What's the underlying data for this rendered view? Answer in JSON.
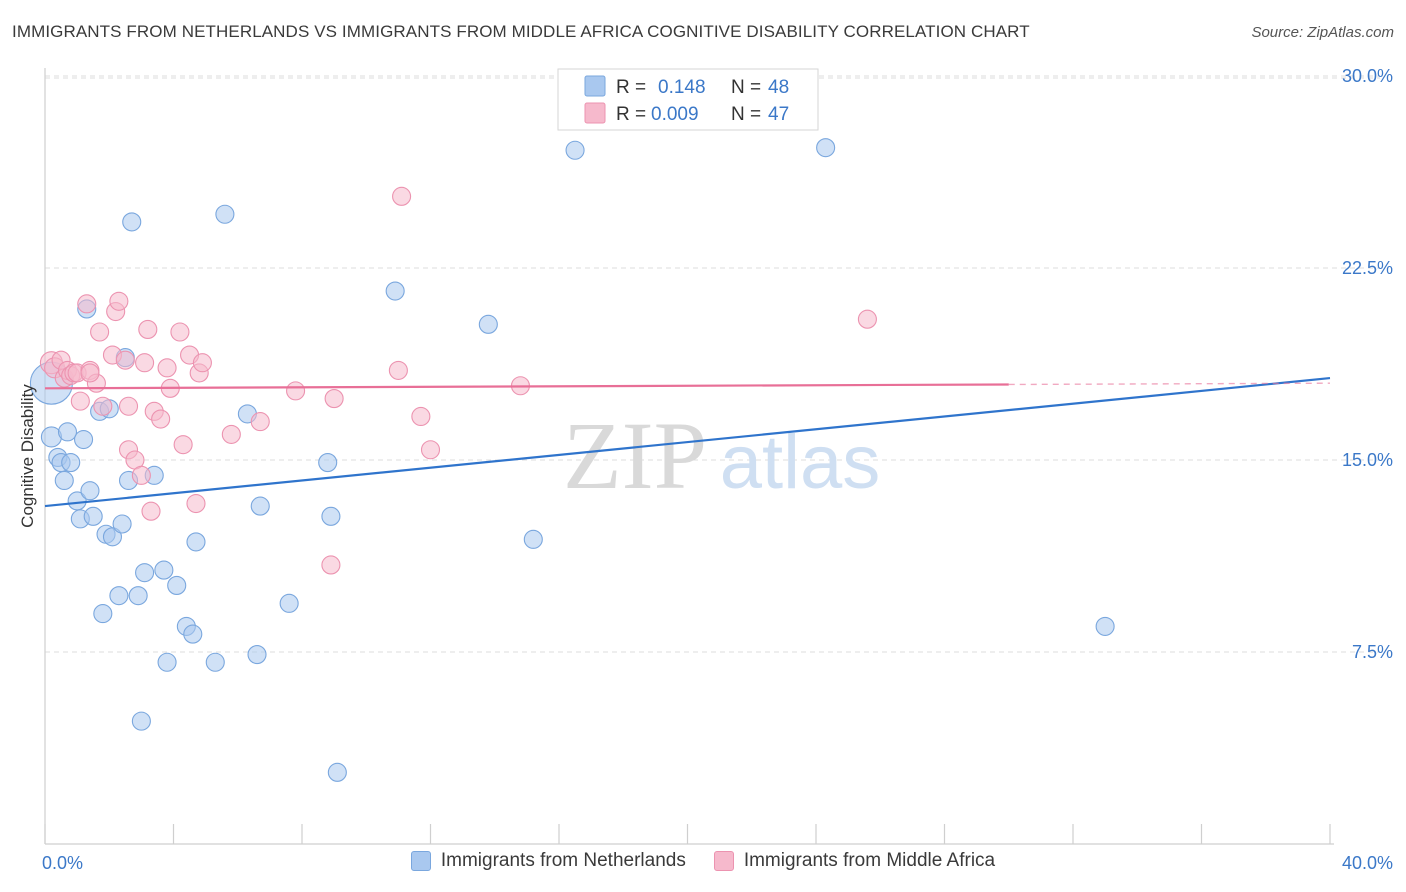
{
  "title": "IMMIGRANTS FROM NETHERLANDS VS IMMIGRANTS FROM MIDDLE AFRICA COGNITIVE DISABILITY CORRELATION CHART",
  "source": "Source: ZipAtlas.com",
  "watermark": {
    "zip": "ZIP",
    "atlas": "atlas"
  },
  "colors": {
    "blue_fill": "#a9c8ef",
    "blue_stroke": "#7aa7de",
    "blue_line": "#2f74cc",
    "pink_fill": "#f6b9cc",
    "pink_stroke": "#ec93b0",
    "pink_line": "#e86f97",
    "axis_text": "#3b78c8",
    "grid": "#dddddd"
  },
  "legend_top": {
    "rows": [
      {
        "r_label": "R =",
        "r_value": "0.148",
        "n_label": "N =",
        "n_value": "48"
      },
      {
        "r_label": "R =",
        "r_value": "0.009",
        "n_label": "N =",
        "n_value": "47"
      }
    ]
  },
  "chart_data": {
    "type": "scatter",
    "ylabel": "Cognitive Disability",
    "xlim": [
      0,
      40
    ],
    "ylim": [
      0,
      31
    ],
    "x_tick_labels": [
      {
        "value": 0,
        "label": "0.0%"
      },
      {
        "value": 40,
        "label": "40.0%"
      }
    ],
    "y_tick_labels": [
      {
        "value": 7.5,
        "label": "7.5%"
      },
      {
        "value": 15.0,
        "label": "15.0%"
      },
      {
        "value": 22.5,
        "label": "22.5%"
      },
      {
        "value": 30.0,
        "label": "30.0%"
      }
    ],
    "series": [
      {
        "name": "Immigrants from Netherlands",
        "color": "blue",
        "trend": {
          "x0": 0,
          "y0": 13.2,
          "x1": 40,
          "y1": 18.2,
          "solid_until": 40
        },
        "points": [
          [
            0.2,
            18.0,
            20
          ],
          [
            0.2,
            15.9,
            9
          ],
          [
            0.4,
            15.1,
            8
          ],
          [
            0.5,
            14.9,
            8
          ],
          [
            0.6,
            14.2,
            8
          ],
          [
            0.7,
            16.1,
            8
          ],
          [
            0.8,
            14.9,
            8
          ],
          [
            1.0,
            13.4,
            8
          ],
          [
            1.1,
            12.7,
            8
          ],
          [
            1.2,
            15.8,
            8
          ],
          [
            1.3,
            20.9,
            8
          ],
          [
            1.4,
            13.8,
            8
          ],
          [
            1.5,
            12.8,
            8
          ],
          [
            1.7,
            16.9,
            8
          ],
          [
            1.8,
            9.0,
            8
          ],
          [
            1.9,
            12.1,
            8
          ],
          [
            2.0,
            17.0,
            8
          ],
          [
            2.1,
            12.0,
            8
          ],
          [
            2.3,
            9.7,
            8
          ],
          [
            2.4,
            12.5,
            8
          ],
          [
            2.5,
            19.0,
            8
          ],
          [
            2.6,
            14.2,
            8
          ],
          [
            2.7,
            24.3,
            8
          ],
          [
            2.9,
            9.7,
            8
          ],
          [
            3.0,
            4.8,
            8
          ],
          [
            3.1,
            10.6,
            8
          ],
          [
            3.4,
            14.4,
            8
          ],
          [
            3.7,
            10.7,
            8
          ],
          [
            3.8,
            7.1,
            8
          ],
          [
            4.1,
            10.1,
            8
          ],
          [
            4.4,
            8.5,
            8
          ],
          [
            4.6,
            8.2,
            8
          ],
          [
            4.7,
            11.8,
            8
          ],
          [
            5.3,
            7.1,
            8
          ],
          [
            5.6,
            24.6,
            8
          ],
          [
            6.3,
            16.8,
            8
          ],
          [
            6.6,
            7.4,
            8
          ],
          [
            6.7,
            13.2,
            8
          ],
          [
            7.6,
            9.4,
            8
          ],
          [
            8.8,
            14.9,
            8
          ],
          [
            8.9,
            12.8,
            8
          ],
          [
            9.1,
            2.8,
            8
          ],
          [
            10.9,
            21.6,
            8
          ],
          [
            13.8,
            20.3,
            8
          ],
          [
            15.2,
            11.9,
            8
          ],
          [
            16.5,
            27.1,
            8
          ],
          [
            24.3,
            27.2,
            8
          ],
          [
            33.0,
            8.5,
            8
          ]
        ]
      },
      {
        "name": "Immigrants from Middle Africa",
        "color": "pink",
        "trend": {
          "x0": 0,
          "y0": 17.8,
          "x1": 40,
          "y1": 18.0,
          "solid_until": 30
        },
        "points": [
          [
            0.2,
            18.8,
            10
          ],
          [
            0.3,
            18.6,
            9
          ],
          [
            0.5,
            18.9,
            8
          ],
          [
            0.6,
            18.2,
            8
          ],
          [
            0.7,
            18.5,
            8
          ],
          [
            0.8,
            18.3,
            8
          ],
          [
            0.9,
            18.4,
            8
          ],
          [
            1.0,
            18.4,
            8
          ],
          [
            1.1,
            17.3,
            8
          ],
          [
            1.3,
            21.1,
            8
          ],
          [
            1.4,
            18.5,
            8
          ],
          [
            1.6,
            18.0,
            8
          ],
          [
            1.7,
            20.0,
            8
          ],
          [
            1.8,
            17.1,
            8
          ],
          [
            2.1,
            19.1,
            8
          ],
          [
            2.2,
            20.8,
            8
          ],
          [
            2.3,
            21.2,
            8
          ],
          [
            2.5,
            18.9,
            8
          ],
          [
            2.6,
            17.1,
            8
          ],
          [
            2.6,
            15.4,
            8
          ],
          [
            2.8,
            15.0,
            8
          ],
          [
            3.0,
            14.4,
            8
          ],
          [
            3.1,
            18.8,
            8
          ],
          [
            3.2,
            20.1,
            8
          ],
          [
            3.3,
            13.0,
            8
          ],
          [
            3.4,
            16.9,
            8
          ],
          [
            3.6,
            16.6,
            8
          ],
          [
            3.8,
            18.6,
            8
          ],
          [
            3.9,
            17.8,
            8
          ],
          [
            4.2,
            20.0,
            8
          ],
          [
            4.3,
            15.6,
            8
          ],
          [
            4.5,
            19.1,
            8
          ],
          [
            4.7,
            13.3,
            8
          ],
          [
            4.8,
            18.4,
            8
          ],
          [
            4.9,
            18.8,
            8
          ],
          [
            5.8,
            16.0,
            8
          ],
          [
            6.7,
            16.5,
            8
          ],
          [
            7.8,
            17.7,
            8
          ],
          [
            8.9,
            10.9,
            8
          ],
          [
            9.0,
            17.4,
            8
          ],
          [
            11.0,
            18.5,
            8
          ],
          [
            11.1,
            25.3,
            8
          ],
          [
            11.7,
            16.7,
            8
          ],
          [
            12.0,
            15.4,
            8
          ],
          [
            14.8,
            17.9,
            8
          ],
          [
            25.6,
            20.5,
            8
          ],
          [
            1.4,
            18.4,
            8
          ]
        ]
      }
    ],
    "legend": "bottom-center"
  }
}
